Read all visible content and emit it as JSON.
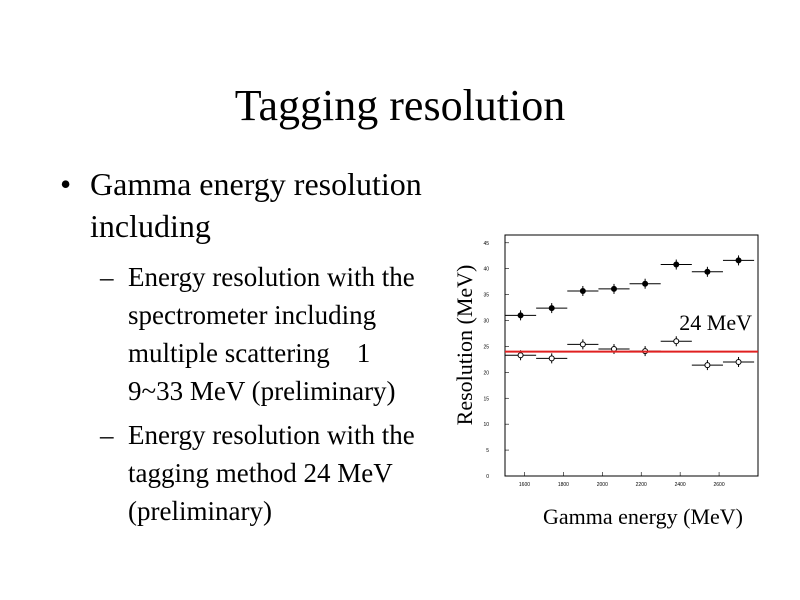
{
  "title": "Tagging resolution",
  "bullets": [
    {
      "lines": [
        "Gamma energy resolution",
        "including"
      ],
      "sub": [
        {
          "lines": [
            "Energy resolution with the",
            "spectrometer including",
            "multiple scattering　1",
            "9~33 MeV (preliminary)"
          ]
        },
        {
          "lines": [
            "Energy resolution with the",
            "tagging method 24 MeV",
            "(preliminary)"
          ]
        }
      ]
    }
  ],
  "chart_data": {
    "type": "scatter",
    "ylabel": "Resolution (MeV)",
    "xlabel": "Gamma energy (MeV)",
    "xlim": [
      1500,
      2800
    ],
    "ylim": [
      0,
      46.5
    ],
    "xticks": [
      1600,
      1800,
      2000,
      2200,
      2400,
      2600
    ],
    "yticks": [
      0,
      5,
      10,
      15,
      20,
      25,
      30,
      35,
      40,
      45
    ],
    "series": [
      {
        "color": "#000000",
        "marker": "filled",
        "x": [
          1580,
          1740,
          1900,
          2060,
          2220,
          2380,
          2540,
          2700
        ],
        "values": [
          31,
          32.4,
          35.7,
          36.1,
          37.1,
          40.8,
          39.4,
          41.6
        ],
        "xerr": [
          80,
          80,
          80,
          80,
          80,
          80,
          80,
          80
        ]
      },
      {
        "color": "#000000",
        "marker": "open",
        "x": [
          1580,
          1740,
          1900,
          2060,
          2220,
          2380,
          2540,
          2700
        ],
        "values": [
          23.3,
          22.7,
          25.4,
          24.5,
          24.1,
          26,
          21.4,
          22
        ],
        "xerr": [
          80,
          80,
          80,
          80,
          80,
          80,
          80,
          80
        ]
      }
    ],
    "hline": {
      "value": 24,
      "label": "24 MeV",
      "color": "#e02020"
    }
  }
}
